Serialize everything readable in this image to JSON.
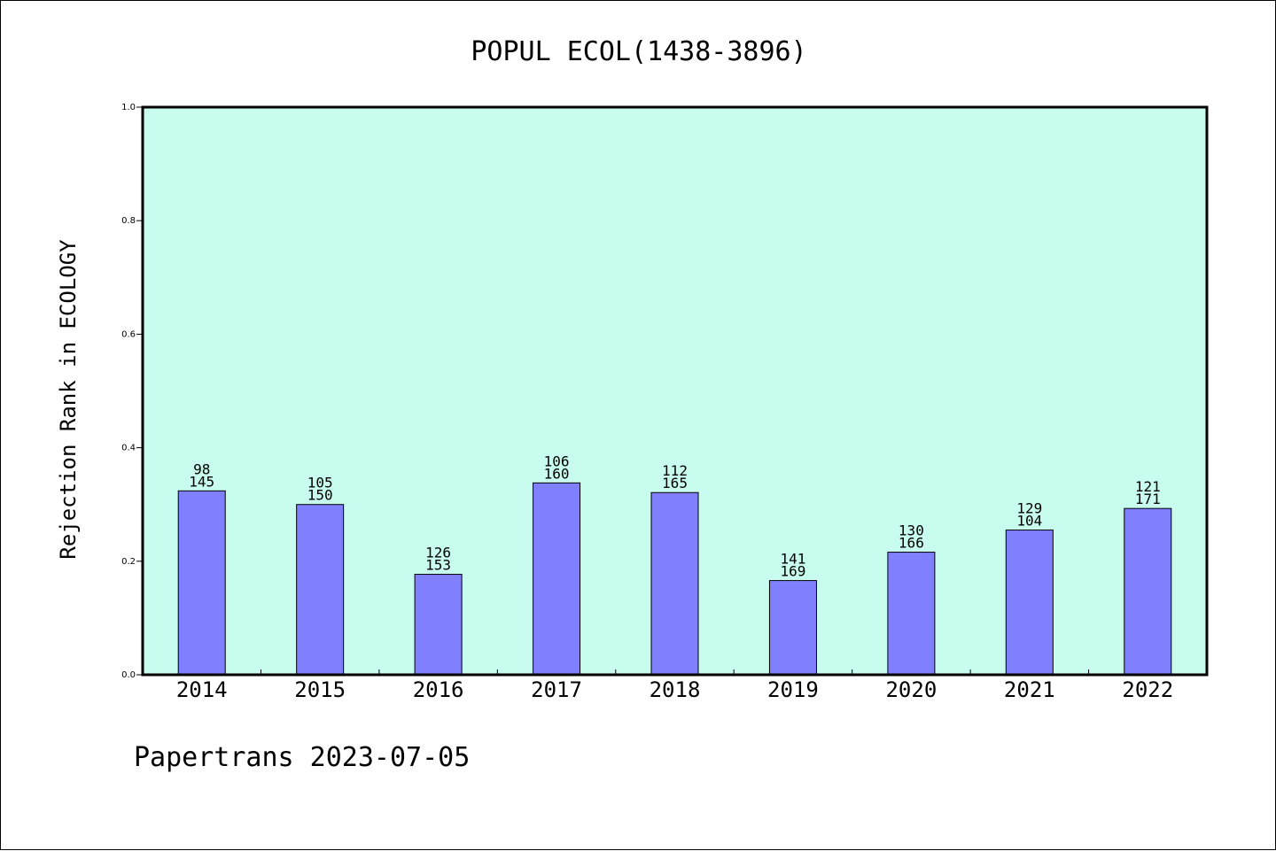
{
  "chart_data": {
    "type": "bar",
    "title": "POPUL ECOL(1438-3896)",
    "xlabel": "",
    "ylabel": "Rejection Rank in ECOLOGY",
    "ylim": [
      0,
      1.0
    ],
    "yticks": [
      "0.0",
      "0.2",
      "0.4",
      "0.6",
      "0.8",
      "1.0"
    ],
    "categories": [
      "2014",
      "2015",
      "2016",
      "2017",
      "2018",
      "2019",
      "2020",
      "2021",
      "2022"
    ],
    "values": [
      0.324,
      0.3,
      0.177,
      0.338,
      0.321,
      0.166,
      0.216,
      0.255,
      0.293
    ],
    "annotations": [
      [
        "98",
        "145"
      ],
      [
        "105",
        "150"
      ],
      [
        "126",
        "153"
      ],
      [
        "106",
        "160"
      ],
      [
        "112",
        "165"
      ],
      [
        "141",
        "169"
      ],
      [
        "130",
        "166"
      ],
      [
        "129",
        "104"
      ],
      [
        "121",
        "171"
      ]
    ],
    "grid": false,
    "colors": {
      "plot_background": "#c8fcee",
      "bar_fill": "#8080ff",
      "bar_stroke": "#000000"
    }
  },
  "footer": {
    "text": "Papertrans 2023-07-05"
  }
}
